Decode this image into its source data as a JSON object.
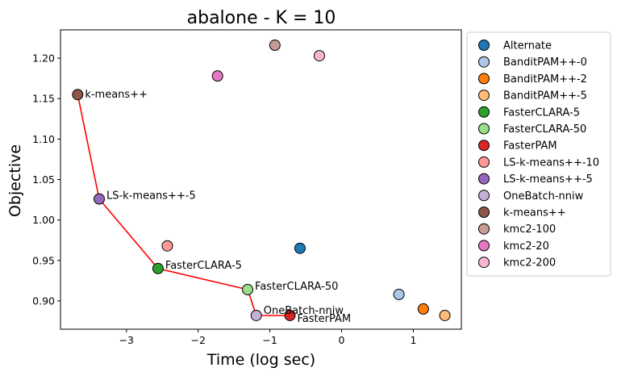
{
  "chart_data": {
    "type": "scatter",
    "title": "abalone - K = 10",
    "xlabel": "Time (log sec)",
    "ylabel": "Objective",
    "xlim": [
      -3.92,
      1.67
    ],
    "ylim": [
      0.865,
      1.235
    ],
    "xticks": [
      -3,
      -2,
      -1,
      0,
      1
    ],
    "xtick_labels": [
      "−3",
      "−2",
      "−1",
      "0",
      "1"
    ],
    "yticks": [
      0.9,
      0.95,
      1.0,
      1.05,
      1.1,
      1.15,
      1.2
    ],
    "ytick_labels": [
      "0.90",
      "0.95",
      "1.00",
      "1.05",
      "1.10",
      "1.15",
      "1.20"
    ],
    "grid": false,
    "legend_position": "outside-right",
    "series": [
      {
        "name": "Alternate",
        "color": "#1f77b4",
        "x": -0.58,
        "y": 0.965
      },
      {
        "name": "BanditPAM++-0",
        "color": "#aec7e8",
        "x": 0.8,
        "y": 0.908
      },
      {
        "name": "BanditPAM++-2",
        "color": "#ff7f0e",
        "x": 1.14,
        "y": 0.89
      },
      {
        "name": "BanditPAM++-5",
        "color": "#ffbb78",
        "x": 1.44,
        "y": 0.882
      },
      {
        "name": "FasterCLARA-5",
        "color": "#2ca02c",
        "x": -2.56,
        "y": 0.94
      },
      {
        "name": "FasterCLARA-50",
        "color": "#98df8a",
        "x": -1.31,
        "y": 0.914
      },
      {
        "name": "FasterPAM",
        "color": "#d62728",
        "x": -0.72,
        "y": 0.882
      },
      {
        "name": "LS-k-means++-10",
        "color": "#ff9896",
        "x": -2.43,
        "y": 0.968
      },
      {
        "name": "LS-k-means++-5",
        "color": "#9467bd",
        "x": -3.38,
        "y": 1.026
      },
      {
        "name": "OneBatch-nniw",
        "color": "#c5b0d5",
        "x": -1.19,
        "y": 0.882
      },
      {
        "name": "k-means++",
        "color": "#8c564b",
        "x": -3.68,
        "y": 1.155
      },
      {
        "name": "kmc2-100",
        "color": "#c49c94",
        "x": -0.93,
        "y": 1.216
      },
      {
        "name": "kmc2-20",
        "color": "#e377c2",
        "x": -1.73,
        "y": 1.178
      },
      {
        "name": "kmc2-200",
        "color": "#f7b6d2",
        "x": -0.31,
        "y": 1.203
      }
    ],
    "pareto_front": {
      "color": "#ff0000",
      "points": [
        {
          "x": -3.68,
          "y": 1.155
        },
        {
          "x": -3.38,
          "y": 1.026
        },
        {
          "x": -2.56,
          "y": 0.94
        },
        {
          "x": -1.31,
          "y": 0.914
        },
        {
          "x": -1.19,
          "y": 0.882
        },
        {
          "x": -0.72,
          "y": 0.882
        }
      ]
    },
    "annotations": [
      {
        "text": "k-means++",
        "series": "k-means++"
      },
      {
        "text": "LS-k-means++-5",
        "series": "LS-k-means++-5"
      },
      {
        "text": "FasterCLARA-5",
        "series": "FasterCLARA-5"
      },
      {
        "text": "FasterCLARA-50",
        "series": "FasterCLARA-50"
      },
      {
        "text": "OneBatch-nniw",
        "series": "OneBatch-nniw"
      },
      {
        "text": "FasterPAM",
        "series": "FasterPAM"
      }
    ]
  }
}
